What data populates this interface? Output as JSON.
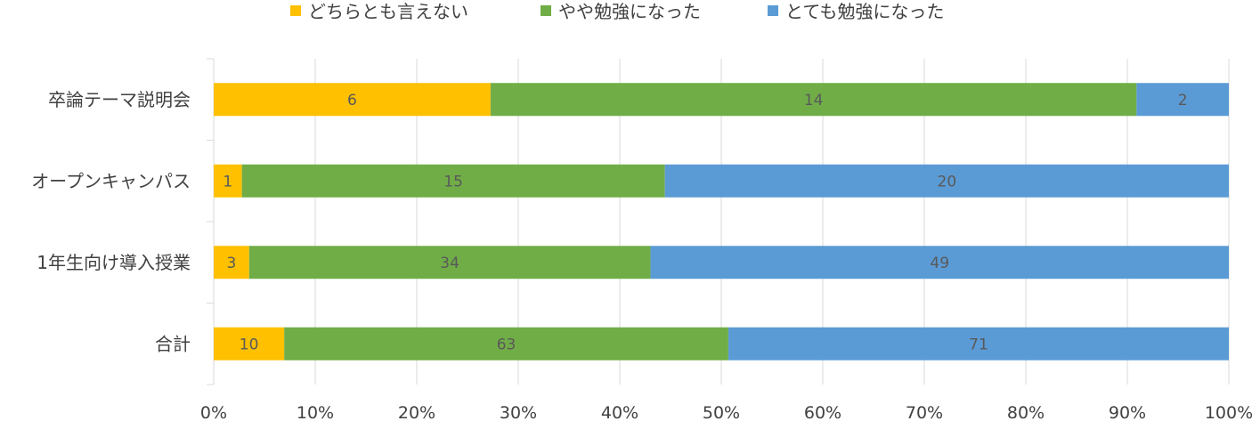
{
  "chart_data": {
    "type": "bar",
    "orientation": "horizontal",
    "stacked": "percent",
    "categories": [
      "卒論テーマ説明会",
      "オープンキャンパス",
      "1年生向け導入授業",
      "合計"
    ],
    "series": [
      {
        "name": "どちらとも言えない",
        "values": [
          6,
          1,
          3,
          10
        ],
        "color": "#FFC000"
      },
      {
        "name": "やや勉強になった",
        "values": [
          14,
          15,
          34,
          63
        ],
        "color": "#70AD47"
      },
      {
        "name": "とても勉強になった",
        "values": [
          2,
          20,
          49,
          71
        ],
        "color": "#5B9BD5"
      }
    ],
    "x_ticks": [
      "0%",
      "10%",
      "20%",
      "30%",
      "40%",
      "50%",
      "60%",
      "70%",
      "80%",
      "90%",
      "100%"
    ],
    "xlim": [
      0,
      100
    ],
    "grid": true,
    "legend_position": "top"
  }
}
